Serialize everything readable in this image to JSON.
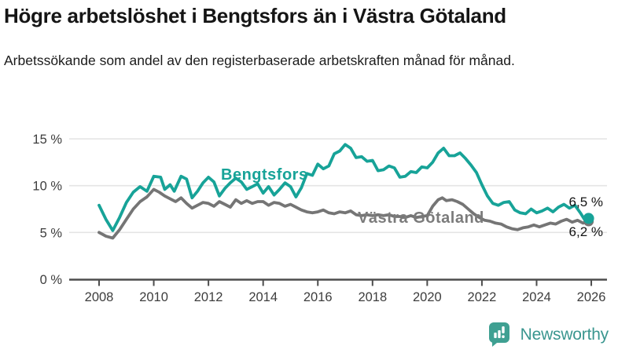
{
  "header": {
    "title": "Högre arbetslöshet i Bengtsfors än i Västra Götaland",
    "subtitle": "Arbetssökande som andel av den registerbaserade arbetskraften månad för månad."
  },
  "colors": {
    "accent_teal": "#17A398",
    "line_gray": "#757575",
    "grid": "#e4e4e4",
    "axis": "#4d4d4d",
    "tick_text": "#3d3d3d",
    "series_label_gray": "#7b7b7b"
  },
  "chart_data": {
    "type": "line",
    "title": "Högre arbetslöshet i Bengtsfors än i Västra Götaland",
    "subtitle": "Arbetssökande som andel av den registerbaserade arbetskraften månad för månad.",
    "unit": "%",
    "grid": true,
    "legend_position": "inline-labels",
    "ylim": [
      0,
      15
    ],
    "xlim": [
      2007.85,
      2026.55
    ],
    "yticks": [
      {
        "value": 0,
        "label": "0 %"
      },
      {
        "value": 5,
        "label": "5 %"
      },
      {
        "value": 10,
        "label": "10 %"
      },
      {
        "value": 15,
        "label": "15 %"
      }
    ],
    "xticks": [
      2008,
      2010,
      2012,
      2014,
      2016,
      2018,
      2020,
      2022,
      2024,
      2026
    ],
    "series": [
      {
        "id": "vastra-gotaland",
        "name": "Västra Götaland",
        "color": "#757575",
        "end_label": "6,2 %",
        "last_value": 6.2,
        "points": [
          [
            2008.0,
            5.0
          ],
          [
            2008.25,
            4.6
          ],
          [
            2008.5,
            4.4
          ],
          [
            2008.75,
            5.3
          ],
          [
            2009.0,
            6.4
          ],
          [
            2009.25,
            7.5
          ],
          [
            2009.5,
            8.3
          ],
          [
            2009.75,
            8.8
          ],
          [
            2010.0,
            9.6
          ],
          [
            2010.2,
            9.3
          ],
          [
            2010.4,
            8.9
          ],
          [
            2010.6,
            8.6
          ],
          [
            2010.8,
            8.3
          ],
          [
            2011.0,
            8.7
          ],
          [
            2011.2,
            8.1
          ],
          [
            2011.4,
            7.6
          ],
          [
            2011.6,
            7.9
          ],
          [
            2011.8,
            8.2
          ],
          [
            2012.0,
            8.1
          ],
          [
            2012.2,
            7.8
          ],
          [
            2012.4,
            8.3
          ],
          [
            2012.6,
            8.0
          ],
          [
            2012.8,
            7.7
          ],
          [
            2013.0,
            8.5
          ],
          [
            2013.2,
            8.1
          ],
          [
            2013.4,
            8.4
          ],
          [
            2013.6,
            8.1
          ],
          [
            2013.8,
            8.3
          ],
          [
            2014.0,
            8.3
          ],
          [
            2014.2,
            7.9
          ],
          [
            2014.4,
            8.2
          ],
          [
            2014.6,
            8.1
          ],
          [
            2014.8,
            7.8
          ],
          [
            2015.0,
            8.0
          ],
          [
            2015.2,
            7.7
          ],
          [
            2015.4,
            7.4
          ],
          [
            2015.6,
            7.2
          ],
          [
            2015.8,
            7.1
          ],
          [
            2016.0,
            7.2
          ],
          [
            2016.2,
            7.4
          ],
          [
            2016.4,
            7.1
          ],
          [
            2016.6,
            7.0
          ],
          [
            2016.8,
            7.2
          ],
          [
            2017.0,
            7.1
          ],
          [
            2017.2,
            7.3
          ],
          [
            2017.4,
            6.9
          ],
          [
            2017.6,
            6.8
          ],
          [
            2017.8,
            6.9
          ],
          [
            2018.0,
            6.8
          ],
          [
            2018.2,
            6.9
          ],
          [
            2018.4,
            6.8
          ],
          [
            2018.6,
            6.9
          ],
          [
            2018.8,
            6.7
          ],
          [
            2019.0,
            6.7
          ],
          [
            2019.2,
            6.6
          ],
          [
            2019.4,
            6.8
          ],
          [
            2019.6,
            6.6
          ],
          [
            2019.8,
            6.7
          ],
          [
            2020.0,
            6.8
          ],
          [
            2020.2,
            7.8
          ],
          [
            2020.4,
            8.5
          ],
          [
            2020.55,
            8.7
          ],
          [
            2020.7,
            8.4
          ],
          [
            2020.9,
            8.5
          ],
          [
            2021.1,
            8.3
          ],
          [
            2021.3,
            8.0
          ],
          [
            2021.5,
            7.5
          ],
          [
            2021.7,
            7.0
          ],
          [
            2021.9,
            6.6
          ],
          [
            2022.1,
            6.3
          ],
          [
            2022.3,
            6.2
          ],
          [
            2022.5,
            6.0
          ],
          [
            2022.7,
            5.9
          ],
          [
            2022.9,
            5.6
          ],
          [
            2023.1,
            5.4
          ],
          [
            2023.3,
            5.3
          ],
          [
            2023.5,
            5.5
          ],
          [
            2023.7,
            5.6
          ],
          [
            2023.9,
            5.8
          ],
          [
            2024.1,
            5.6
          ],
          [
            2024.3,
            5.8
          ],
          [
            2024.5,
            6.0
          ],
          [
            2024.7,
            5.9
          ],
          [
            2024.9,
            6.2
          ],
          [
            2025.1,
            6.4
          ],
          [
            2025.3,
            6.1
          ],
          [
            2025.5,
            6.3
          ],
          [
            2025.7,
            6.0
          ],
          [
            2025.9,
            6.2
          ]
        ]
      },
      {
        "id": "bengtsfors",
        "name": "Bengtsfors",
        "color": "#17A398",
        "end_label": "6,5 %",
        "last_value": 6.5,
        "points": [
          [
            2008.0,
            7.9
          ],
          [
            2008.25,
            6.4
          ],
          [
            2008.5,
            5.2
          ],
          [
            2008.75,
            6.6
          ],
          [
            2009.0,
            8.2
          ],
          [
            2009.25,
            9.3
          ],
          [
            2009.5,
            9.9
          ],
          [
            2009.75,
            9.4
          ],
          [
            2010.0,
            11.0
          ],
          [
            2010.25,
            10.9
          ],
          [
            2010.4,
            9.6
          ],
          [
            2010.6,
            10.1
          ],
          [
            2010.75,
            9.4
          ],
          [
            2011.0,
            11.0
          ],
          [
            2011.2,
            10.7
          ],
          [
            2011.4,
            8.7
          ],
          [
            2011.6,
            9.4
          ],
          [
            2011.8,
            10.3
          ],
          [
            2012.0,
            10.9
          ],
          [
            2012.2,
            10.4
          ],
          [
            2012.4,
            8.9
          ],
          [
            2012.6,
            9.7
          ],
          [
            2012.8,
            10.3
          ],
          [
            2013.0,
            10.8
          ],
          [
            2013.2,
            10.4
          ],
          [
            2013.4,
            9.6
          ],
          [
            2013.6,
            9.9
          ],
          [
            2013.8,
            10.2
          ],
          [
            2014.0,
            9.2
          ],
          [
            2014.2,
            9.9
          ],
          [
            2014.4,
            9.0
          ],
          [
            2014.6,
            9.6
          ],
          [
            2014.8,
            10.3
          ],
          [
            2015.0,
            9.9
          ],
          [
            2015.2,
            8.8
          ],
          [
            2015.4,
            9.8
          ],
          [
            2015.6,
            11.3
          ],
          [
            2015.8,
            11.1
          ],
          [
            2016.0,
            12.3
          ],
          [
            2016.2,
            11.8
          ],
          [
            2016.4,
            12.1
          ],
          [
            2016.6,
            13.4
          ],
          [
            2016.8,
            13.7
          ],
          [
            2017.0,
            14.4
          ],
          [
            2017.2,
            14.0
          ],
          [
            2017.4,
            13.0
          ],
          [
            2017.6,
            13.1
          ],
          [
            2017.8,
            12.6
          ],
          [
            2018.0,
            12.7
          ],
          [
            2018.2,
            11.6
          ],
          [
            2018.4,
            11.7
          ],
          [
            2018.6,
            12.1
          ],
          [
            2018.8,
            11.9
          ],
          [
            2019.0,
            10.9
          ],
          [
            2019.2,
            11.0
          ],
          [
            2019.4,
            11.5
          ],
          [
            2019.6,
            11.4
          ],
          [
            2019.8,
            12.0
          ],
          [
            2020.0,
            11.9
          ],
          [
            2020.2,
            12.5
          ],
          [
            2020.4,
            13.5
          ],
          [
            2020.6,
            14.0
          ],
          [
            2020.8,
            13.2
          ],
          [
            2021.0,
            13.2
          ],
          [
            2021.2,
            13.5
          ],
          [
            2021.4,
            12.9
          ],
          [
            2021.6,
            12.2
          ],
          [
            2021.8,
            11.4
          ],
          [
            2022.0,
            10.1
          ],
          [
            2022.2,
            8.9
          ],
          [
            2022.4,
            8.1
          ],
          [
            2022.6,
            7.9
          ],
          [
            2022.8,
            8.2
          ],
          [
            2023.0,
            8.3
          ],
          [
            2023.2,
            7.4
          ],
          [
            2023.4,
            7.1
          ],
          [
            2023.6,
            7.0
          ],
          [
            2023.8,
            7.5
          ],
          [
            2024.0,
            7.1
          ],
          [
            2024.2,
            7.3
          ],
          [
            2024.4,
            7.6
          ],
          [
            2024.6,
            7.2
          ],
          [
            2024.8,
            7.7
          ],
          [
            2025.0,
            8.0
          ],
          [
            2025.2,
            7.6
          ],
          [
            2025.4,
            7.9
          ],
          [
            2025.6,
            7.1
          ],
          [
            2025.75,
            6.4
          ],
          [
            2025.9,
            6.5
          ]
        ]
      }
    ]
  },
  "logo": {
    "wordmark": "Newsworthy",
    "icon": "newsworthy-bubble-chart-icon",
    "icon_color": "#3FA092",
    "text_color": "#3A968F"
  }
}
